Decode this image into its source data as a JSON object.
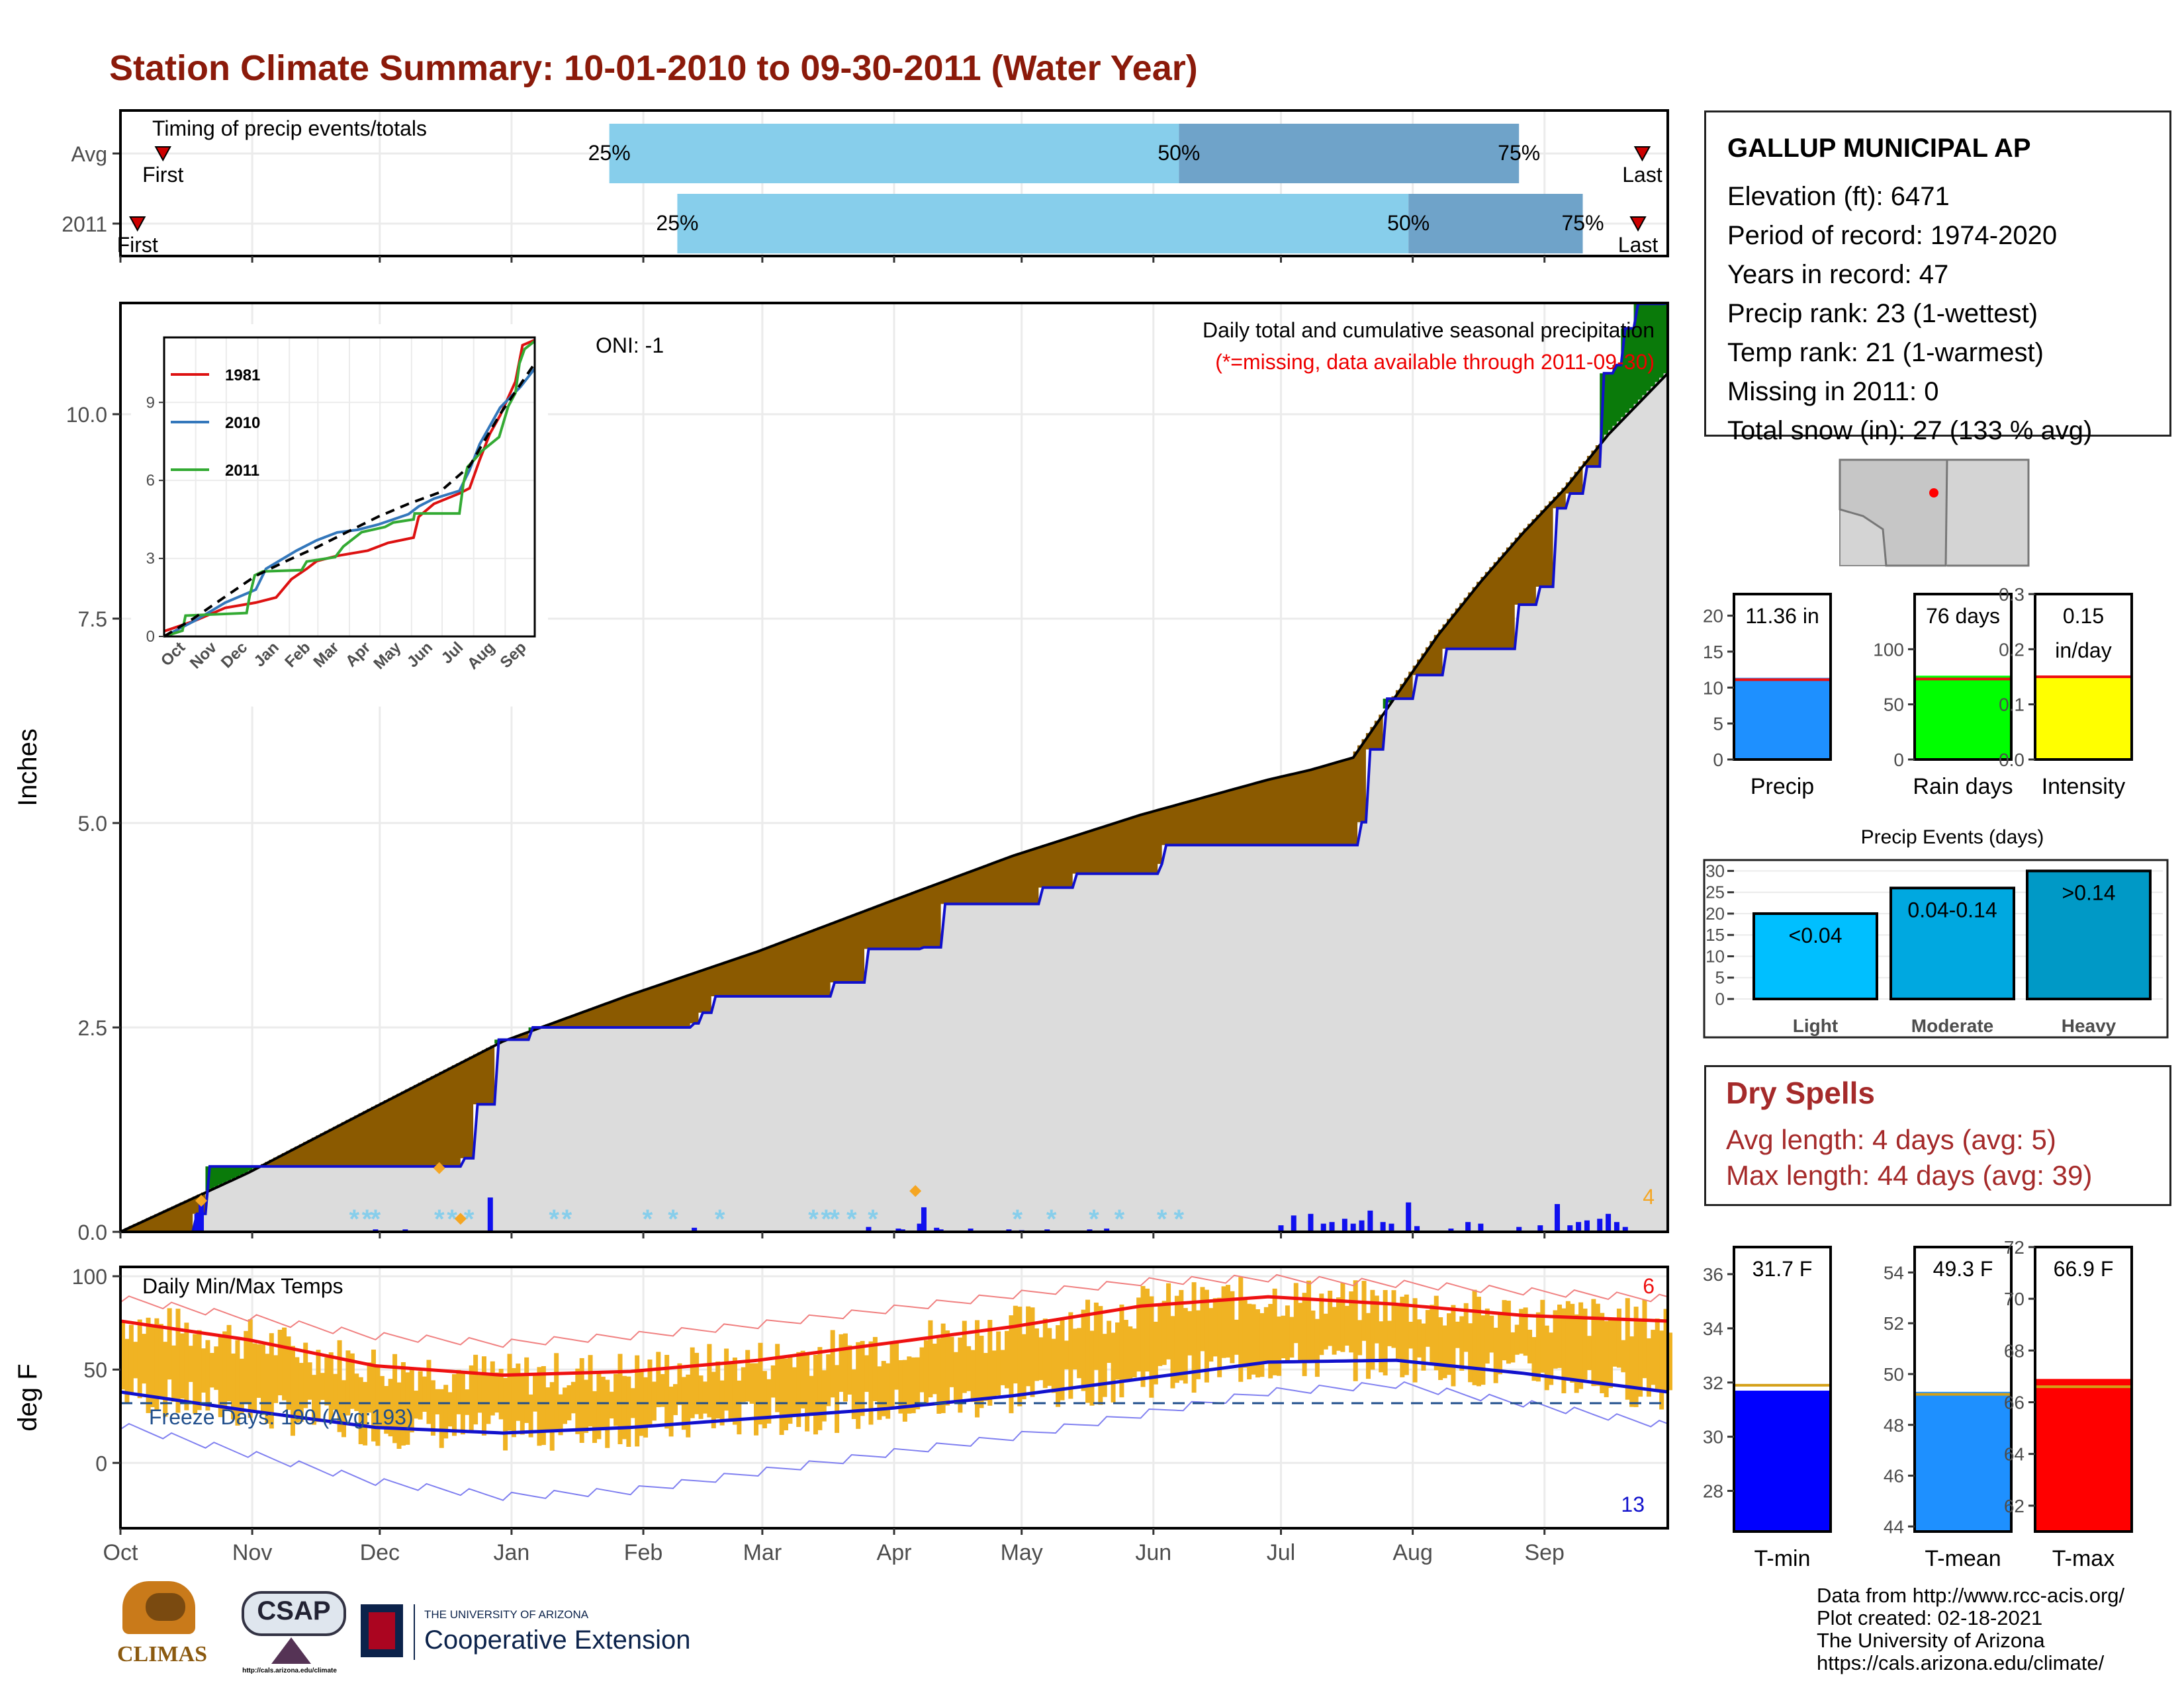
{
  "title": "Station Climate Summary: 10-01-2010 to 09-30-2011 (Water Year)",
  "timing": {
    "label": "Timing of precip events/totals",
    "rows": [
      {
        "name": "Avg",
        "first_label": "First",
        "last_label": "Last",
        "first_day": 10,
        "p25_day": 115,
        "p50_day": 249,
        "p75_day": 329,
        "last_day": 358
      },
      {
        "name": "2011",
        "first_label": "First",
        "last_label": "Last",
        "first_day": 4,
        "p25_day": 131,
        "p50_day": 303,
        "p75_day": 344,
        "last_day": 357
      }
    ],
    "pct_labels": [
      "25%",
      "50%",
      "75%"
    ],
    "colors": {
      "light": "#87ceeb",
      "dark": "#6fa3c9",
      "marker": "#cc0000"
    }
  },
  "station": {
    "name": "GALLUP MUNICIPAL AP",
    "lines": [
      "Elevation (ft): 6471",
      "Period of record: 1974-2020",
      "Years in record: 47",
      "Precip rank: 23 (1-wettest)",
      "Temp rank: 21 (1-warmest)",
      "Missing in 2011: 0",
      "Total snow (in): 27 (133 % avg)"
    ]
  },
  "main_chart": {
    "ylabel": "Inches",
    "oni": "ONI: -1",
    "subtitle1": "Daily total and cumulative seasonal precipitation",
    "subtitle2": "(*=missing, data available through 2011-09-30)",
    "corner_count": "4",
    "yticks": [
      "0.0",
      "2.5",
      "5.0",
      "7.5",
      "10.0"
    ],
    "month_labels": [
      "Oct",
      "Nov",
      "Dec",
      "Jan",
      "Feb",
      "Mar",
      "Apr",
      "May",
      "Jun",
      "Jul",
      "Aug",
      "Sep"
    ],
    "colors": {
      "observed": "#1010cc",
      "above": "#0a7a0a",
      "below": "#8b5a00",
      "area": "#dcdcdc",
      "avg_line": "#000000"
    }
  },
  "chart_data": [
    {
      "type": "area",
      "name": "cumulative precipitation",
      "x_unit": "day of water year",
      "ylim": [
        0,
        11.36
      ],
      "series": [
        {
          "name": "observed",
          "x": [
            0,
            18,
            21,
            81,
            84,
            89,
            97,
            135,
            137,
            140,
            168,
            176,
            189,
            194,
            217,
            225,
            245,
            246,
            290,
            292,
            294,
            298,
            305,
            312,
            329,
            334,
            338,
            341,
            345,
            349,
            352,
            354,
            357,
            364
          ],
          "y": [
            0,
            0.22,
            0.8,
            0.9,
            1.56,
            2.35,
            2.5,
            2.55,
            2.68,
            2.88,
            3.05,
            3.46,
            3.48,
            4.01,
            4.21,
            4.38,
            4.5,
            4.73,
            4.73,
            5.01,
            5.9,
            6.52,
            6.81,
            7.13,
            7.67,
            7.89,
            8.85,
            9.03,
            9.36,
            10.5,
            10.6,
            11.05,
            11.35,
            11.36
          ]
        },
        {
          "name": "average",
          "x": [
            0,
            30,
            60,
            90,
            120,
            150,
            180,
            210,
            240,
            270,
            280,
            290,
            300,
            310,
            320,
            330,
            340,
            350,
            364
          ],
          "y": [
            0,
            0.72,
            1.53,
            2.33,
            2.9,
            3.43,
            4.02,
            4.6,
            5.1,
            5.53,
            5.65,
            5.8,
            6.55,
            7.3,
            7.95,
            8.55,
            9.1,
            9.75,
            10.5
          ]
        }
      ],
      "daily_precip": {
        "x": [
          18,
          19,
          60,
          67,
          87,
          135,
          176,
          183,
          184,
          188,
          189,
          192,
          193,
          200,
          209,
          212,
          218,
          228,
          232,
          273,
          276,
          280,
          283,
          285,
          288,
          290,
          292,
          294,
          297,
          299,
          303,
          305,
          313,
          317,
          320,
          329,
          334,
          338,
          341,
          343,
          345,
          348,
          350,
          352,
          354
        ],
        "y": [
          0.22,
          0.34,
          0.03,
          0.03,
          0.42,
          0.05,
          0.06,
          0.04,
          0.03,
          0.1,
          0.3,
          0.05,
          0.03,
          0.04,
          0.03,
          0.02,
          0.03,
          0.03,
          0.04,
          0.08,
          0.2,
          0.22,
          0.1,
          0.12,
          0.16,
          0.1,
          0.14,
          0.26,
          0.12,
          0.1,
          0.36,
          0.07,
          0.04,
          0.12,
          0.1,
          0.06,
          0.08,
          0.34,
          0.08,
          0.12,
          0.14,
          0.16,
          0.22,
          0.12,
          0.06
        ]
      },
      "snow_markers_x": [
        55,
        58,
        60,
        75,
        78,
        82,
        102,
        105,
        124,
        130,
        141,
        163,
        166,
        168,
        172,
        177,
        211,
        219,
        229,
        235,
        245,
        249
      ],
      "diamond_markers": [
        {
          "x": 19,
          "y": 0.38
        },
        {
          "x": 75,
          "y": 0.78
        },
        {
          "x": 80,
          "y": 0.16
        },
        {
          "x": 187,
          "y": 0.5
        }
      ]
    },
    {
      "type": "line",
      "name": "inset cumulative precipitation",
      "xlabels": [
        "Oct",
        "Nov",
        "Dec",
        "Jan",
        "Feb",
        "Mar",
        "Apr",
        "May",
        "Jun",
        "Jul",
        "Aug",
        "Sep"
      ],
      "yticks": [
        "0",
        "3",
        "6",
        "9"
      ],
      "ylim": [
        0,
        11.5
      ],
      "series": [
        {
          "name": "1981",
          "color": "#dd1111",
          "x": [
            0,
            30,
            60,
            90,
            110,
            125,
            140,
            150,
            170,
            200,
            220,
            245,
            250,
            265,
            290,
            300,
            310,
            320,
            330,
            345,
            352,
            364
          ],
          "y": [
            0.2,
            0.6,
            1.1,
            1.3,
            1.5,
            2.2,
            2.6,
            2.9,
            3.1,
            3.3,
            3.6,
            3.8,
            4.6,
            5.1,
            5.5,
            5.7,
            6.8,
            7.8,
            8.5,
            9.8,
            11.2,
            11.4
          ]
        },
        {
          "name": "2010",
          "color": "#3377bb",
          "x": [
            0,
            30,
            60,
            90,
            100,
            130,
            150,
            170,
            190,
            210,
            240,
            250,
            265,
            290,
            300,
            310,
            330,
            350,
            364
          ],
          "y": [
            0,
            0.6,
            1.3,
            1.8,
            2.6,
            3.3,
            3.7,
            4.0,
            4.1,
            4.3,
            4.7,
            5.0,
            5.3,
            5.6,
            6.4,
            7.4,
            8.8,
            9.6,
            10.3
          ]
        },
        {
          "name": "2011",
          "color": "#33aa33",
          "x": [
            0,
            18,
            21,
            81,
            84,
            89,
            97,
            135,
            140,
            168,
            176,
            194,
            217,
            225,
            245,
            246,
            290,
            294,
            298,
            305,
            312,
            329,
            338,
            345,
            349,
            354,
            364
          ],
          "y": [
            0,
            0.22,
            0.8,
            0.9,
            1.56,
            2.35,
            2.5,
            2.55,
            2.88,
            3.05,
            3.46,
            4.01,
            4.21,
            4.38,
            4.5,
            4.73,
            4.73,
            5.9,
            6.52,
            6.81,
            7.13,
            7.67,
            8.85,
            9.36,
            10.5,
            11.05,
            11.36
          ]
        },
        {
          "name": "",
          "color": "#000000",
          "dashed": true,
          "x": [
            0,
            30,
            60,
            90,
            120,
            150,
            180,
            210,
            240,
            270,
            300,
            330,
            364
          ],
          "y": [
            0,
            0.72,
            1.53,
            2.33,
            2.9,
            3.43,
            4.02,
            4.6,
            5.1,
            5.53,
            6.55,
            8.55,
            10.5
          ]
        }
      ]
    },
    {
      "type": "bar",
      "name": "Precip",
      "label": "11.36 in",
      "values": [
        11.36
      ],
      "avg": 11.1,
      "ylim": [
        0,
        23
      ],
      "yticks": [
        "0",
        "5",
        "10",
        "15",
        "20"
      ],
      "color": "#1e90ff"
    },
    {
      "type": "bar",
      "name": "Rain days",
      "label": "76 days",
      "values": [
        76
      ],
      "avg": 73,
      "ylim": [
        0,
        150
      ],
      "yticks": [
        "0",
        "50",
        "100"
      ],
      "color": "#00ff00"
    },
    {
      "type": "bar",
      "name": "Intensity",
      "label": [
        "0.15",
        "in/day"
      ],
      "values": [
        0.15
      ],
      "avg": 0.15,
      "ylim": [
        0,
        0.3
      ],
      "yticks": [
        "0.0",
        "0.1",
        "0.2",
        "0.3"
      ],
      "color": "#ffff00"
    },
    {
      "type": "bar",
      "title": "Precip Events (days)",
      "categories": [
        "Light",
        "Moderate",
        "Heavy"
      ],
      "values": [
        20,
        26,
        30
      ],
      "bar_labels": [
        "<0.04",
        "0.04-0.14",
        ">0.14"
      ],
      "ylim": [
        0,
        31
      ],
      "yticks": [
        "0",
        "5",
        "10",
        "15",
        "20",
        "25",
        "30"
      ],
      "colors": [
        "#00bfff",
        "#00a8e0",
        "#0099c6"
      ]
    },
    {
      "type": "bar",
      "name": "Daily Min/Max Temps",
      "ylabel": "deg F",
      "ylim": [
        -35,
        105
      ],
      "yticks": [
        "0",
        "50",
        "100"
      ],
      "freeze_label": "Freeze Days: 190 (Avg:193)",
      "freeze_line": 32,
      "record_high_count": "6",
      "record_low_count": "13",
      "month_labels": [
        "Oct",
        "Nov",
        "Dec",
        "Jan",
        "Feb",
        "Mar",
        "Apr",
        "May",
        "Jun",
        "Jul",
        "Aug",
        "Sep"
      ],
      "series": [
        {
          "name": "avg max",
          "x": [
            0,
            30,
            60,
            90,
            120,
            150,
            180,
            210,
            240,
            270,
            300,
            330,
            364
          ],
          "y": [
            76,
            66,
            52,
            47,
            49,
            55,
            64,
            73,
            84,
            89,
            85,
            79,
            76
          ]
        },
        {
          "name": "avg min",
          "x": [
            0,
            30,
            60,
            90,
            120,
            150,
            180,
            210,
            240,
            270,
            300,
            330,
            364
          ],
          "y": [
            38,
            28,
            19,
            16,
            19,
            24,
            29,
            36,
            45,
            54,
            55,
            48,
            38
          ]
        },
        {
          "name": "record max",
          "x": [
            0,
            30,
            60,
            90,
            120,
            150,
            180,
            210,
            240,
            270,
            300,
            330,
            364
          ],
          "y": [
            88,
            78,
            68,
            64,
            68,
            74,
            82,
            90,
            97,
            99,
            96,
            92,
            88
          ]
        },
        {
          "name": "record min",
          "x": [
            0,
            30,
            60,
            90,
            120,
            150,
            180,
            210,
            240,
            270,
            300,
            330,
            364
          ],
          "y": [
            20,
            5,
            -10,
            -18,
            -15,
            -5,
            5,
            14,
            26,
            38,
            42,
            32,
            20
          ]
        }
      ],
      "colors": {
        "band": "#f0b323",
        "max": "#ee1111",
        "min": "#1111cc",
        "rec_max": "#f08080",
        "rec_min": "#8080f0"
      }
    },
    {
      "type": "bar",
      "name": "T-min",
      "label": "31.7 F",
      "values": [
        31.7
      ],
      "avg": 31.9,
      "ylim": [
        26.5,
        37
      ],
      "yticks": [
        "28",
        "30",
        "32",
        "34",
        "36"
      ],
      "color": "#0000ff"
    },
    {
      "type": "bar",
      "name": "T-mean",
      "label": "49.3 F",
      "values": [
        49.3
      ],
      "avg": 49.2,
      "ylim": [
        43.8,
        55
      ],
      "yticks": [
        "44",
        "46",
        "48",
        "50",
        "52",
        "54"
      ],
      "color": "#1e90ff"
    },
    {
      "type": "bar",
      "name": "T-max",
      "label": "66.9 F",
      "values": [
        66.9
      ],
      "avg": 66.6,
      "ylim": [
        61,
        72
      ],
      "yticks": [
        "62",
        "64",
        "66",
        "68",
        "70",
        "72"
      ],
      "color": "#ff0000"
    }
  ],
  "dry_spells": {
    "title": "Dry Spells",
    "avg_line": "Avg length: 4 days (avg: 5)",
    "max_line": "Max length: 44 days (avg: 39)",
    "color": "#a52a2a"
  },
  "logos": {
    "climas": "CLIMAS",
    "csap": "CSAP",
    "csap_url": "http://cals.arizona.edu/climate",
    "ua_small": "THE UNIVERSITY OF ARIZONA",
    "ua_big": "Cooperative Extension"
  },
  "credits": [
    "Data from http://www.rcc-acis.org/",
    "Plot created: 02-18-2021",
    "The University of Arizona",
    "https://cals.arizona.edu/climate/"
  ]
}
